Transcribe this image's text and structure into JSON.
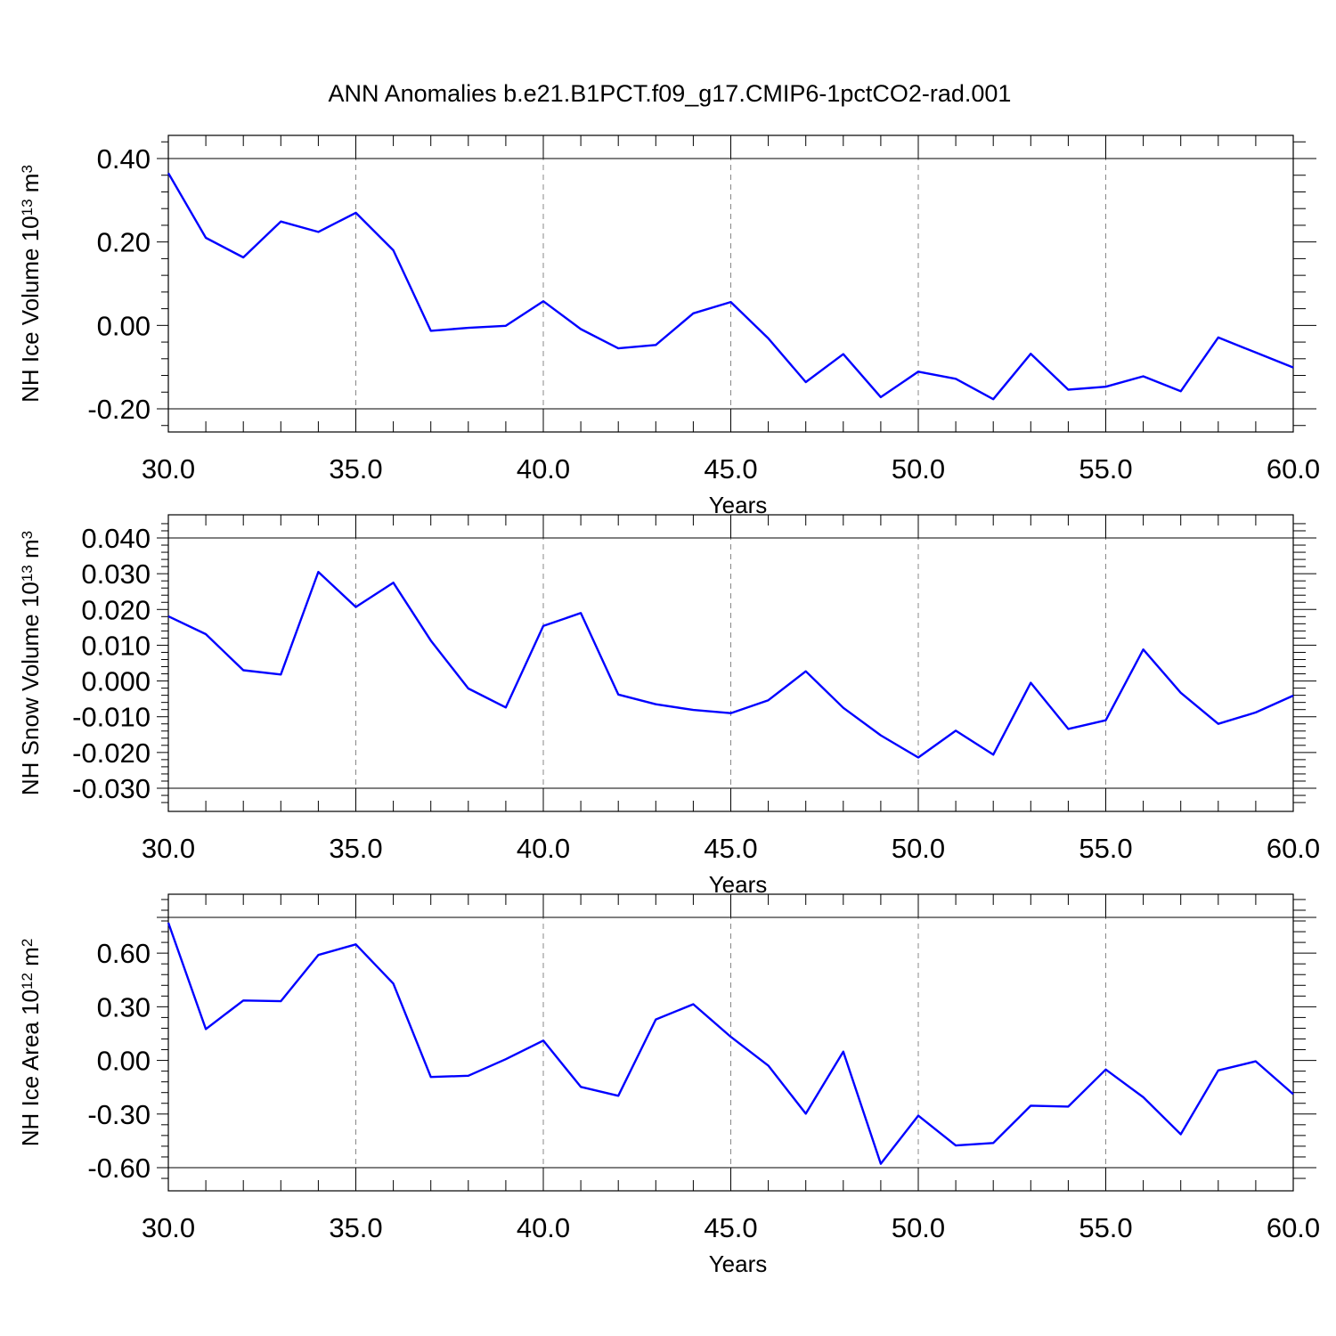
{
  "title": "ANN Anomalies b.e21.B1PCT.f09_g17.CMIP6-1pctCO2-rad.001",
  "colors": {
    "series": "#0000ff",
    "axis": "#000000",
    "grid": "#888888"
  },
  "chart_data": [
    {
      "type": "line",
      "ylabel": "NH Ice Volume 10",
      "ylabel_exp": "13",
      "ylabel_unit": " m",
      "ylabel_unit_exp": "3",
      "xlabel": "Years",
      "xlim": [
        30,
        60
      ],
      "ylim": [
        -0.2,
        0.4
      ],
      "xticks": [
        30,
        35,
        40,
        45,
        50,
        55,
        60
      ],
      "xtick_labels": [
        "30.0",
        "35.0",
        "40.0",
        "45.0",
        "50.0",
        "55.0",
        "60.0"
      ],
      "yticks": [
        -0.2,
        0.0,
        0.2,
        0.4
      ],
      "ytick_labels": [
        "-0.20",
        "0.00",
        "0.20",
        "0.40"
      ],
      "grid": "vertical dashed at major x ticks",
      "x": [
        30,
        31,
        32,
        33,
        34,
        35,
        36,
        37,
        38,
        39,
        40,
        41,
        42,
        43,
        44,
        45,
        46,
        47,
        48,
        49,
        50,
        51,
        52,
        53,
        54,
        55,
        56,
        57,
        58,
        59,
        60
      ],
      "y": [
        0.365,
        0.21,
        0.163,
        0.249,
        0.224,
        0.27,
        0.18,
        -0.013,
        -0.006,
        -0.001,
        0.058,
        -0.009,
        -0.055,
        -0.047,
        0.029,
        0.056,
        -0.031,
        -0.136,
        -0.069,
        -0.172,
        -0.111,
        -0.128,
        -0.177,
        -0.068,
        -0.154,
        -0.147,
        -0.122,
        -0.158,
        -0.029,
        -0.065,
        -0.101
      ]
    },
    {
      "type": "line",
      "ylabel": "NH Snow Volume 10",
      "ylabel_exp": "13",
      "ylabel_unit": " m",
      "ylabel_unit_exp": "3",
      "xlabel": "Years",
      "xlim": [
        30,
        60
      ],
      "ylim": [
        -0.03,
        0.04
      ],
      "xticks": [
        30,
        35,
        40,
        45,
        50,
        55,
        60
      ],
      "xtick_labels": [
        "30.0",
        "35.0",
        "40.0",
        "45.0",
        "50.0",
        "55.0",
        "60.0"
      ],
      "yticks": [
        -0.03,
        -0.02,
        -0.01,
        0.0,
        0.01,
        0.02,
        0.03,
        0.04
      ],
      "ytick_labels": [
        "-0.030",
        "-0.020",
        "-0.010",
        "0.000",
        "0.010",
        "0.020",
        "0.030",
        "0.040"
      ],
      "grid": "vertical dashed at major x ticks",
      "x": [
        30,
        31,
        32,
        33,
        34,
        35,
        36,
        37,
        38,
        39,
        40,
        41,
        42,
        43,
        44,
        45,
        46,
        47,
        48,
        49,
        50,
        51,
        52,
        53,
        54,
        55,
        56,
        57,
        58,
        59,
        60
      ],
      "y": [
        0.0181,
        0.0131,
        0.003,
        0.0018,
        0.0305,
        0.0207,
        0.0275,
        0.0113,
        -0.0021,
        -0.0074,
        0.0154,
        0.019,
        -0.0038,
        -0.0065,
        -0.0081,
        -0.009,
        -0.0054,
        0.0027,
        -0.0075,
        -0.0152,
        -0.0214,
        -0.0139,
        -0.0206,
        -0.0005,
        -0.0134,
        -0.011,
        0.0088,
        -0.0033,
        -0.012,
        -0.0088,
        -0.0041
      ]
    },
    {
      "type": "line",
      "ylabel": "NH Ice Area 10",
      "ylabel_exp": "12",
      "ylabel_unit": " m",
      "ylabel_unit_exp": "2",
      "xlabel": "Years",
      "xlim": [
        30,
        60
      ],
      "ylim": [
        -0.6,
        0.8
      ],
      "xticks": [
        30,
        35,
        40,
        45,
        50,
        55,
        60
      ],
      "xtick_labels": [
        "30.0",
        "35.0",
        "40.0",
        "45.0",
        "50.0",
        "55.0",
        "60.0"
      ],
      "yticks": [
        -0.6,
        -0.3,
        0.0,
        0.3,
        0.6
      ],
      "ytick_labels": [
        "-0.60",
        "-0.30",
        "0.00",
        "0.30",
        "0.60"
      ],
      "grid": "vertical dashed at major x ticks",
      "x": [
        30,
        31,
        32,
        33,
        34,
        35,
        36,
        37,
        38,
        39,
        40,
        41,
        42,
        43,
        44,
        45,
        46,
        47,
        48,
        49,
        50,
        51,
        52,
        53,
        54,
        55,
        56,
        57,
        58,
        59,
        60
      ],
      "y": [
        0.77,
        0.175,
        0.335,
        0.331,
        0.59,
        0.649,
        0.43,
        -0.093,
        -0.086,
        0.007,
        0.111,
        -0.148,
        -0.198,
        0.229,
        0.314,
        0.132,
        -0.029,
        -0.298,
        0.049,
        -0.578,
        -0.309,
        -0.476,
        -0.462,
        -0.253,
        -0.258,
        -0.051,
        -0.206,
        -0.413,
        -0.056,
        -0.005,
        -0.189
      ]
    }
  ]
}
